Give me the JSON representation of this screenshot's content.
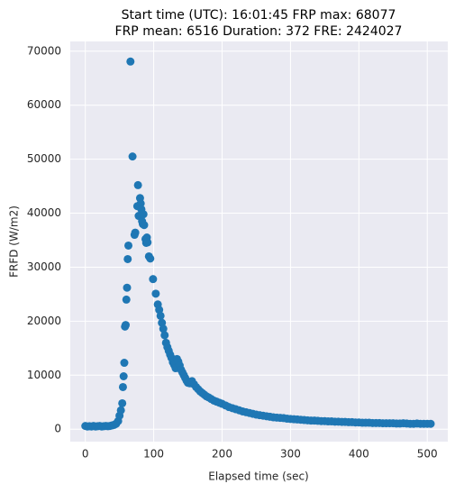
{
  "chart_data": {
    "type": "scatter",
    "title": [
      "Start time (UTC): 16:01:45 FRP max: 68077",
      "FRP mean: 6516 Duration: 372 FRE: 2424027"
    ],
    "xlabel": "Elapsed time (sec)",
    "ylabel": "FRFD (W/m2)",
    "xlim": [
      -22,
      530
    ],
    "ylim": [
      -2300,
      71800
    ],
    "xticks": [
      0,
      100,
      200,
      300,
      400,
      500
    ],
    "yticks": [
      0,
      10000,
      20000,
      30000,
      40000,
      50000,
      60000,
      70000
    ],
    "grid": true,
    "series": [
      {
        "color": "#1f77b4",
        "x": [
          0,
          3,
          6,
          9,
          12,
          15,
          18,
          21,
          24,
          27,
          30,
          33,
          36,
          39,
          42,
          45,
          48,
          50,
          52,
          54,
          55,
          56,
          57,
          58,
          59,
          60,
          61,
          62,
          63,
          66,
          69,
          72,
          73,
          76,
          77,
          78,
          80,
          81,
          82,
          83,
          84,
          85,
          86,
          88,
          89,
          90,
          91,
          93,
          95,
          99,
          103,
          106,
          108,
          110,
          112,
          114,
          116,
          118,
          120,
          122,
          124,
          126,
          128,
          130,
          132,
          134,
          136,
          138,
          140,
          142,
          144,
          146,
          148,
          150,
          153,
          156,
          159,
          162,
          165,
          168,
          171,
          174,
          177,
          180,
          184,
          188,
          192,
          196,
          200,
          205,
          210,
          215,
          220,
          225,
          230,
          235,
          240,
          245,
          250,
          255,
          260,
          265,
          270,
          275,
          280,
          285,
          290,
          295,
          300,
          305,
          310,
          315,
          320,
          325,
          330,
          335,
          340,
          345,
          350,
          355,
          360,
          365,
          370,
          375,
          380,
          385,
          390,
          395,
          400,
          405,
          410,
          415,
          420,
          425,
          430,
          435,
          440,
          445,
          450,
          455,
          460,
          465,
          470,
          475,
          480,
          485,
          490,
          495,
          500,
          505
        ],
        "values": [
          600,
          500,
          550,
          500,
          600,
          500,
          550,
          600,
          500,
          550,
          600,
          550,
          600,
          700,
          800,
          1000,
          1500,
          2500,
          3500,
          4800,
          7800,
          9800,
          12300,
          19000,
          19300,
          24000,
          26200,
          31500,
          34000,
          68077,
          50500,
          36000,
          36400,
          41300,
          45200,
          39500,
          42800,
          41800,
          40700,
          38500,
          38000,
          39800,
          37800,
          35200,
          34500,
          35500,
          34600,
          32000,
          31600,
          27800,
          25100,
          23100,
          22100,
          21000,
          19700,
          18600,
          17400,
          16000,
          15200,
          14500,
          13800,
          13200,
          12400,
          11900,
          11300,
          13000,
          12500,
          11800,
          11000,
          10500,
          10000,
          9500,
          9000,
          8600,
          8500,
          8900,
          8300,
          7800,
          7400,
          7000,
          6700,
          6400,
          6100,
          5900,
          5600,
          5300,
          5100,
          4900,
          4700,
          4400,
          4100,
          3900,
          3700,
          3500,
          3300,
          3150,
          3000,
          2850,
          2700,
          2600,
          2500,
          2400,
          2300,
          2200,
          2150,
          2100,
          2050,
          1950,
          1900,
          1850,
          1800,
          1750,
          1700,
          1650,
          1600,
          1600,
          1550,
          1500,
          1500,
          1450,
          1450,
          1400,
          1400,
          1350,
          1350,
          1300,
          1300,
          1250,
          1250,
          1200,
          1200,
          1200,
          1150,
          1150,
          1150,
          1100,
          1100,
          1100,
          1100,
          1050,
          1050,
          1100,
          1050,
          1000,
          1000,
          1050,
          1000,
          1000,
          1000,
          1000
        ]
      }
    ]
  }
}
